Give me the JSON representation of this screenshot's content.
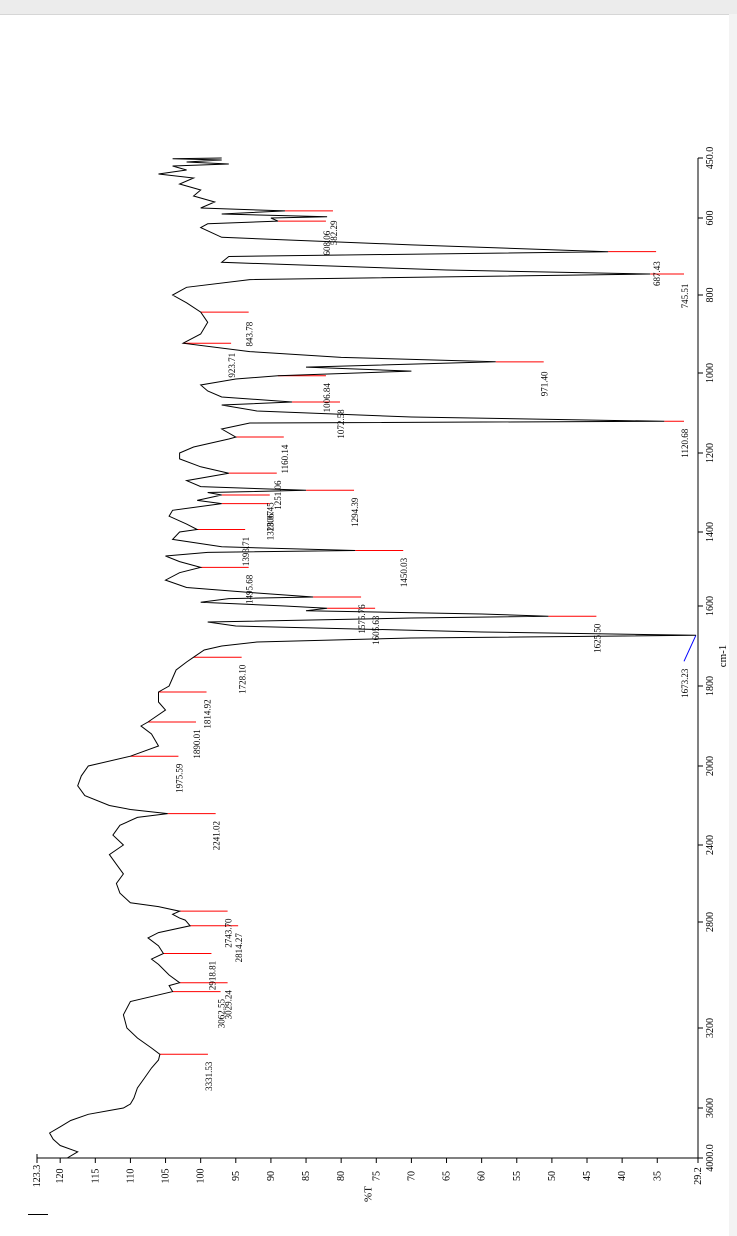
{
  "chart_data": {
    "type": "line",
    "orientation": "rotated-90",
    "xlabel": "cm-1",
    "ylabel": "%T",
    "xlim": [
      4000.0,
      450.0
    ],
    "ylim": [
      29.2,
      123.3
    ],
    "x_ticks": [
      "4000.0",
      "3600",
      "3200",
      "2800",
      "2400",
      "2000",
      "1800",
      "1600",
      "1400",
      "1200",
      "1000",
      "800",
      "600",
      "450.0"
    ],
    "y_ticks": [
      "123.3",
      "120",
      "115",
      "110",
      "105",
      "100",
      "95",
      "90",
      "85",
      "80",
      "75",
      "70",
      "65",
      "60",
      "55",
      "50",
      "45",
      "40",
      "35",
      "29.2"
    ],
    "x_tick_values": [
      4000,
      3600,
      3200,
      2800,
      2400,
      2000,
      1800,
      1600,
      1400,
      1200,
      1000,
      800,
      600,
      450
    ],
    "y_tick_values": [
      123.3,
      120,
      115,
      110,
      105,
      100,
      95,
      90,
      85,
      80,
      75,
      70,
      65,
      60,
      55,
      50,
      45,
      40,
      35,
      29.2
    ],
    "series": [
      {
        "points": [
          [
            4000,
            119
          ],
          [
            3950,
            117.5
          ],
          [
            3900,
            120
          ],
          [
            3850,
            121
          ],
          [
            3800,
            121.5
          ],
          [
            3750,
            120
          ],
          [
            3700,
            118.5
          ],
          [
            3650,
            116
          ],
          [
            3620,
            113
          ],
          [
            3600,
            111
          ],
          [
            3580,
            110
          ],
          [
            3550,
            109.5
          ],
          [
            3500,
            109
          ],
          [
            3450,
            108
          ],
          [
            3400,
            107
          ],
          [
            3360,
            106
          ],
          [
            3331.53,
            105.8
          ],
          [
            3300,
            107
          ],
          [
            3250,
            109
          ],
          [
            3200,
            110.5
          ],
          [
            3150,
            111
          ],
          [
            3100,
            110
          ],
          [
            3062.55,
            104
          ],
          [
            3040,
            104.5
          ],
          [
            3029.24,
            103
          ],
          [
            3000,
            104.5
          ],
          [
            2960,
            106
          ],
          [
            2940,
            107
          ],
          [
            2918.81,
            105.3
          ],
          [
            2890,
            106
          ],
          [
            2860,
            107.5
          ],
          [
            2840,
            106
          ],
          [
            2814.27,
            101.5
          ],
          [
            2790,
            102.2
          ],
          [
            2780,
            103
          ],
          [
            2760,
            104
          ],
          [
            2743.7,
            103
          ],
          [
            2720,
            106
          ],
          [
            2700,
            110
          ],
          [
            2650,
            111.5
          ],
          [
            2600,
            112
          ],
          [
            2550,
            111
          ],
          [
            2500,
            112
          ],
          [
            2450,
            113
          ],
          [
            2400,
            111
          ],
          [
            2350,
            112.5
          ],
          [
            2300,
            111.5
          ],
          [
            2260,
            109
          ],
          [
            2241.02,
            104.7
          ],
          [
            2220,
            110
          ],
          [
            2200,
            113
          ],
          [
            2150,
            116.5
          ],
          [
            2100,
            117.5
          ],
          [
            2050,
            117
          ],
          [
            2000,
            116
          ],
          [
            1975.59,
            110
          ],
          [
            1950,
            106
          ],
          [
            1920,
            107
          ],
          [
            1900,
            108.5
          ],
          [
            1890.01,
            107.5
          ],
          [
            1860,
            105
          ],
          [
            1840,
            106
          ],
          [
            1814.92,
            106
          ],
          [
            1800,
            104.5
          ],
          [
            1780,
            104
          ],
          [
            1760,
            103.5
          ],
          [
            1740,
            102
          ],
          [
            1728.1,
            101
          ],
          [
            1710,
            99.5
          ],
          [
            1700,
            97
          ],
          [
            1690,
            92
          ],
          [
            1680,
            70
          ],
          [
            1673.23,
            29.5
          ],
          [
            1665,
            60
          ],
          [
            1650,
            95
          ],
          [
            1640,
            99
          ],
          [
            1630,
            70
          ],
          [
            1625.5,
            50.5
          ],
          [
            1620,
            60
          ],
          [
            1612,
            85
          ],
          [
            1605.63,
            82
          ],
          [
            1600,
            88
          ],
          [
            1590,
            100
          ],
          [
            1580,
            96
          ],
          [
            1575.76,
            84
          ],
          [
            1565,
            92
          ],
          [
            1550,
            102
          ],
          [
            1530,
            105
          ],
          [
            1510,
            103
          ],
          [
            1495.68,
            100
          ],
          [
            1480,
            103
          ],
          [
            1465,
            105
          ],
          [
            1455,
            99
          ],
          [
            1450.03,
            78
          ],
          [
            1440,
            97
          ],
          [
            1420,
            104
          ],
          [
            1400,
            103
          ],
          [
            1393.71,
            100.5
          ],
          [
            1380,
            102
          ],
          [
            1360,
            104.5
          ],
          [
            1345,
            104
          ],
          [
            1328.07,
            97
          ],
          [
            1320,
            100.5
          ],
          [
            1306.45,
            97
          ],
          [
            1300,
            99
          ],
          [
            1294.39,
            85
          ],
          [
            1285,
            100
          ],
          [
            1270,
            102
          ],
          [
            1251.06,
            96
          ],
          [
            1235,
            100
          ],
          [
            1215,
            103
          ],
          [
            1200,
            103
          ],
          [
            1185,
            101
          ],
          [
            1165,
            96
          ],
          [
            1160.14,
            95
          ],
          [
            1140,
            97
          ],
          [
            1125,
            93
          ],
          [
            1120.68,
            34
          ],
          [
            1110,
            70
          ],
          [
            1095,
            92
          ],
          [
            1080,
            97
          ],
          [
            1072.58,
            87
          ],
          [
            1060,
            97
          ],
          [
            1045,
            99
          ],
          [
            1030,
            100
          ],
          [
            1015,
            95
          ],
          [
            1006.84,
            89
          ],
          [
            995,
            70
          ],
          [
            985,
            85
          ],
          [
            971.4,
            58
          ],
          [
            960,
            80
          ],
          [
            945,
            93
          ],
          [
            923.71,
            102.5
          ],
          [
            900,
            100
          ],
          [
            870,
            99
          ],
          [
            843.78,
            100
          ],
          [
            820,
            102
          ],
          [
            800,
            104
          ],
          [
            780,
            102
          ],
          [
            760,
            93
          ],
          [
            745.51,
            36
          ],
          [
            735,
            65
          ],
          [
            715,
            97
          ],
          [
            700,
            96
          ],
          [
            687.43,
            42
          ],
          [
            670,
            70
          ],
          [
            650,
            97
          ],
          [
            625,
            100
          ],
          [
            615,
            99
          ],
          [
            608.06,
            89
          ],
          [
            600,
            90
          ],
          [
            597,
            82
          ],
          [
            590,
            97
          ],
          [
            582.29,
            88
          ],
          [
            575,
            100
          ],
          [
            560,
            98
          ],
          [
            545,
            101
          ],
          [
            530,
            100
          ],
          [
            515,
            103
          ],
          [
            500,
            101
          ],
          [
            490,
            106
          ],
          [
            480,
            102
          ],
          [
            470,
            104
          ],
          [
            465,
            96
          ],
          [
            460,
            102
          ],
          [
            455,
            97
          ],
          [
            452,
            104
          ],
          [
            450,
            97
          ]
        ]
      }
    ],
    "annotations": [
      {
        "label": "3331.53",
        "x": 3331.53
      },
      {
        "label": "3062.55",
        "x": 3062.55
      },
      {
        "label": "3029.24",
        "x": 3029.24
      },
      {
        "label": "2918.81",
        "x": 2918.81
      },
      {
        "label": "2814.27",
        "x": 2814.27
      },
      {
        "label": "2743.70",
        "x": 2743.7
      },
      {
        "label": "2241.02",
        "x": 2241.02
      },
      {
        "label": "1975.59",
        "x": 1975.59
      },
      {
        "label": "1890.01",
        "x": 1890.01
      },
      {
        "label": "1814.92",
        "x": 1814.92
      },
      {
        "label": "1728.10",
        "x": 1728.1
      },
      {
        "label": "1673.23",
        "x": 1673.23
      },
      {
        "label": "1625.50",
        "x": 1625.5
      },
      {
        "label": "1605.63",
        "x": 1605.63
      },
      {
        "label": "1575.76",
        "x": 1575.76
      },
      {
        "label": "1495.68",
        "x": 1495.68
      },
      {
        "label": "1450.03",
        "x": 1450.03
      },
      {
        "label": "1393.71",
        "x": 1393.71
      },
      {
        "label": "1328.07",
        "x": 1328.07
      },
      {
        "label": "1306.45",
        "x": 1306.45
      },
      {
        "label": "1294.39",
        "x": 1294.39
      },
      {
        "label": "1251.06",
        "x": 1251.06
      },
      {
        "label": "1160.14",
        "x": 1160.14
      },
      {
        "label": "1120.68",
        "x": 1120.68
      },
      {
        "label": "1072.58",
        "x": 1072.58
      },
      {
        "label": "1006.84",
        "x": 1006.84
      },
      {
        "label": "971.40",
        "x": 971.4
      },
      {
        "label": "923.71",
        "x": 923.71
      },
      {
        "label": "843.78",
        "x": 843.78
      },
      {
        "label": "745.51",
        "x": 745.51
      },
      {
        "label": "687.43",
        "x": 687.43
      },
      {
        "label": "608.06",
        "x": 608.06
      },
      {
        "label": "582.29",
        "x": 582.29
      }
    ],
    "colors": {
      "curve": "#000000",
      "peak_leader": "#ff0000",
      "max_peak_leader": "#0000ff"
    }
  }
}
